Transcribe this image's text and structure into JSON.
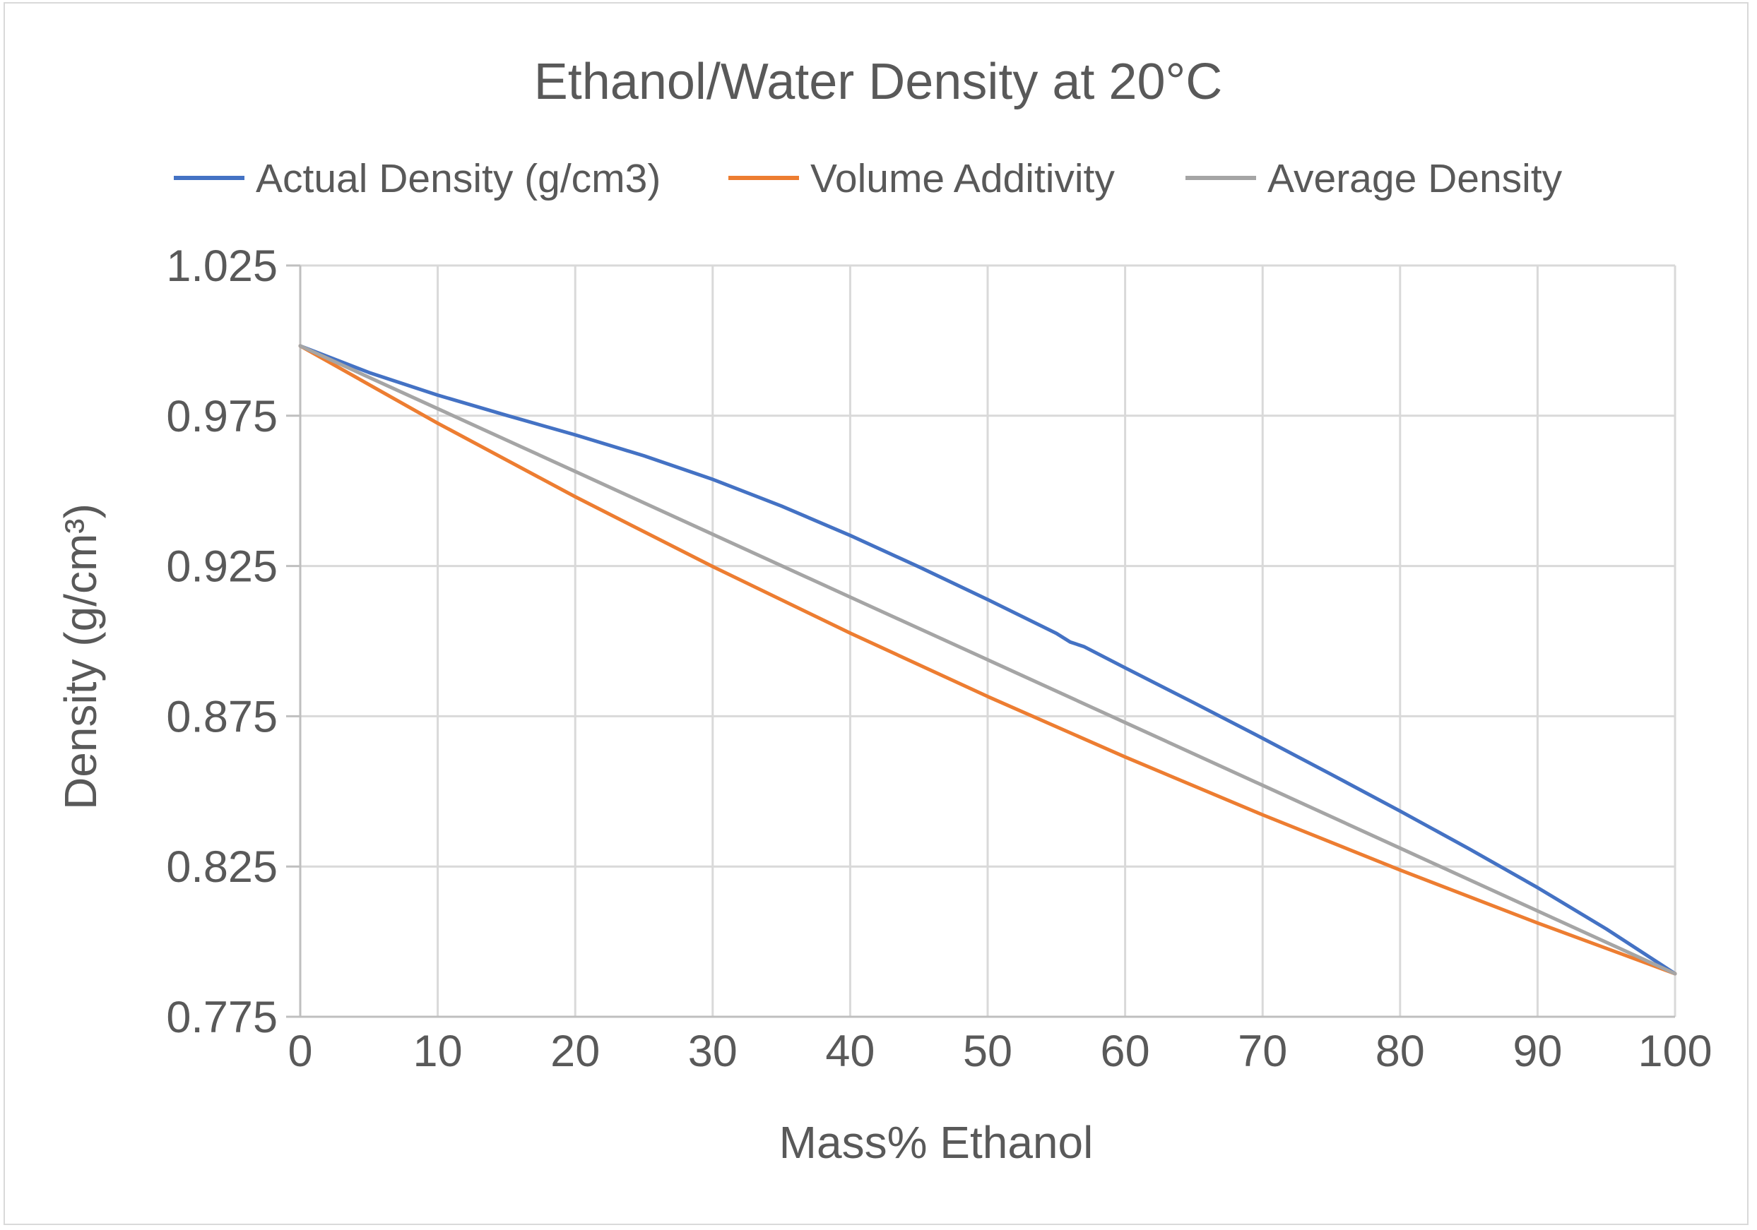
{
  "chart_data": {
    "type": "line",
    "title": "Ethanol/Water Density at 20°C",
    "xlabel": "Mass% Ethanol",
    "ylabel": "Density (g/cm³)",
    "xlim": [
      0,
      100
    ],
    "ylim": [
      0.775,
      1.025
    ],
    "xticks": [
      0,
      10,
      20,
      30,
      40,
      50,
      60,
      70,
      80,
      90,
      100
    ],
    "yticks": [
      "0.775",
      "0.825",
      "0.875",
      "0.925",
      "0.975",
      "1.025"
    ],
    "grid": true,
    "legend_position": "top",
    "series": [
      {
        "name": "Actual Density (g/cm3)",
        "color": "#4472C4",
        "x": [
          0,
          5,
          10,
          15,
          20,
          25,
          30,
          35,
          40,
          45,
          50,
          55,
          56,
          57,
          60,
          65,
          70,
          75,
          80,
          85,
          90,
          95,
          100
        ],
        "y": [
          0.99823,
          0.98938,
          0.98187,
          0.97514,
          0.96864,
          0.96168,
          0.95382,
          0.94494,
          0.93518,
          0.92472,
          0.91384,
          0.90258,
          0.8997,
          0.8982,
          0.89113,
          0.87948,
          0.86766,
          0.85564,
          0.84344,
          0.83095,
          0.81797,
          0.80424,
          0.78934
        ]
      },
      {
        "name": "Volume Additivity",
        "color": "#ED7D31",
        "x": [
          0,
          10,
          20,
          30,
          40,
          50,
          60,
          70,
          80,
          90,
          100
        ],
        "y": [
          0.99823,
          0.9725,
          0.94805,
          0.92481,
          0.90268,
          0.88158,
          0.86145,
          0.84221,
          0.82382,
          0.80621,
          0.78934
        ]
      },
      {
        "name": "Average Density",
        "color": "#A5A5A5",
        "x": [
          0,
          10,
          20,
          30,
          40,
          50,
          60,
          70,
          80,
          90,
          100
        ],
        "y": [
          0.99823,
          0.97734,
          0.95645,
          0.93556,
          0.91467,
          0.89379,
          0.8729,
          0.85201,
          0.83112,
          0.81023,
          0.78934
        ]
      }
    ]
  }
}
